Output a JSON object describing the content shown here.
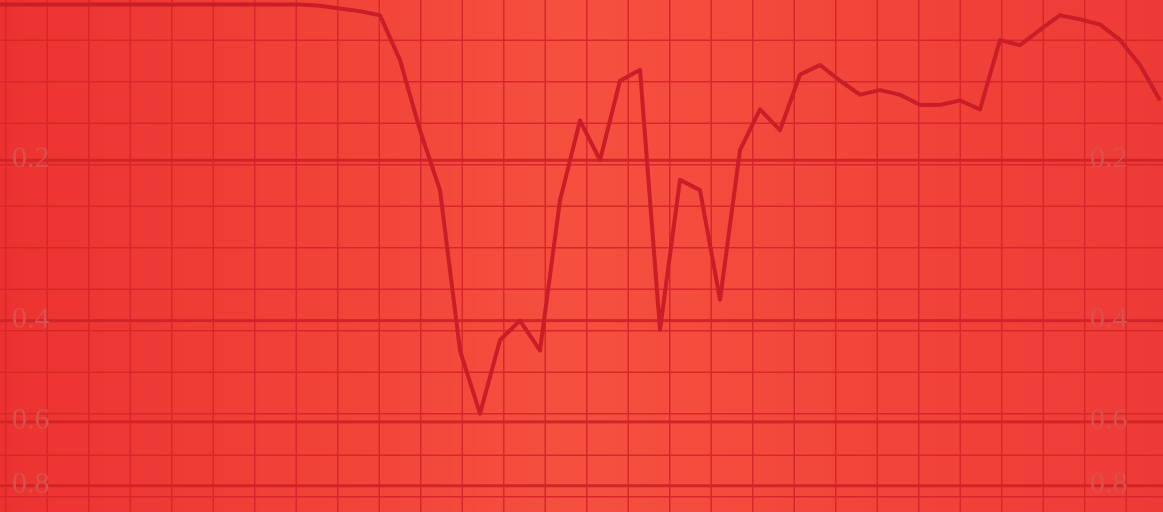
{
  "chart_data": {
    "type": "line",
    "categories": [
      null,
      null,
      null,
      null,
      null,
      null,
      null,
      null,
      null,
      null,
      null,
      null,
      null,
      null,
      null,
      null,
      null,
      null,
      null,
      null,
      null,
      null,
      null,
      null,
      null,
      null,
      null,
      null,
      null,
      null,
      null,
      null,
      null,
      null,
      null,
      null,
      null,
      null,
      null,
      null,
      null,
      null,
      null,
      null,
      null,
      null,
      null,
      null,
      null,
      null,
      null,
      null,
      null,
      null,
      null,
      null,
      null,
      null,
      null
    ],
    "series": [
      {
        "color": "#c91d27",
        "values": [
          0.067,
          0.067,
          0.067,
          0.067,
          0.067,
          0.067,
          0.067,
          0.067,
          0.067,
          0.067,
          0.067,
          0.067,
          0.067,
          0.067,
          0.067,
          0.067,
          0.068,
          0.07,
          0.072,
          0.075,
          0.11,
          0.171,
          0.231,
          0.45,
          0.58,
          0.432,
          0.4,
          0.45,
          0.242,
          0.162,
          0.2,
          0.127,
          0.118,
          0.415,
          0.22,
          0.231,
          0.368,
          0.19,
          0.152,
          0.171,
          0.122,
          0.114,
          0.127,
          0.139,
          0.135,
          0.139,
          0.148,
          0.148,
          0.144,
          0.152,
          0.094,
          0.098,
          0.086,
          0.075,
          0.078,
          0.082,
          0.094,
          0.114,
          0.144
        ]
      }
    ],
    "y_scale": "absorbance",
    "ylim": [
      0,
      1
    ],
    "yticks": [
      0.2,
      0.4,
      0.6,
      0.8
    ],
    "grid": true
  }
}
